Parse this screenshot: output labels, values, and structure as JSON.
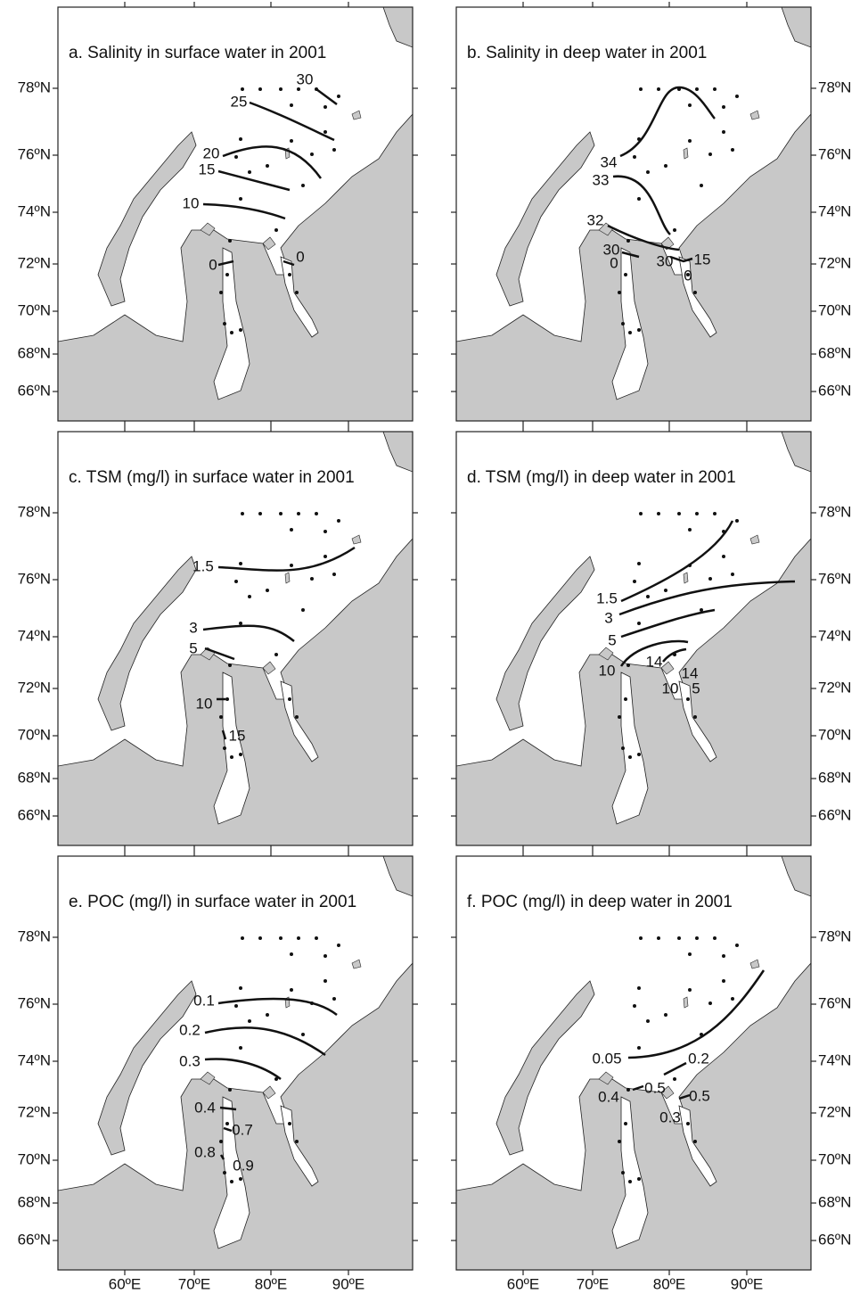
{
  "axes": {
    "longitude_labels": [
      "60ºE",
      "70ºE",
      "80ºE",
      "90ºE"
    ],
    "latitude_labels": [
      "78ºN",
      "76ºN",
      "74ºN",
      "72ºN",
      "70ºN",
      "68ºN",
      "66ºN"
    ]
  },
  "panels": [
    {
      "title": "a. Salinity in surface water in 2001",
      "contour_labels": [
        "30",
        "25",
        "20",
        "15",
        "10",
        "0",
        "0"
      ]
    },
    {
      "title": "b. Salinity in deep water in 2001",
      "contour_labels": [
        "34",
        "33",
        "32",
        "30",
        "0",
        "30",
        "15",
        "0"
      ]
    },
    {
      "title": "c. TSM (mg/l) in surface water in 2001",
      "contour_labels": [
        "1.5",
        "3",
        "5",
        "10",
        "15"
      ]
    },
    {
      "title": "d. TSM (mg/l) in deep water in 2001",
      "contour_labels": [
        "1.5",
        "3",
        "5",
        "10",
        "14",
        "14",
        "10",
        "5"
      ]
    },
    {
      "title": "e. POC (mg/l) in surface water in 2001",
      "contour_labels": [
        "0.1",
        "0.2",
        "0.3",
        "0.4",
        "0.7",
        "0.8",
        "0.9"
      ]
    },
    {
      "title": "f. POC (mg/l) in deep water in 2001",
      "contour_labels": [
        "0.05",
        "0.2",
        "0.5",
        "0.4",
        "0.5",
        "0.3"
      ]
    }
  ]
}
